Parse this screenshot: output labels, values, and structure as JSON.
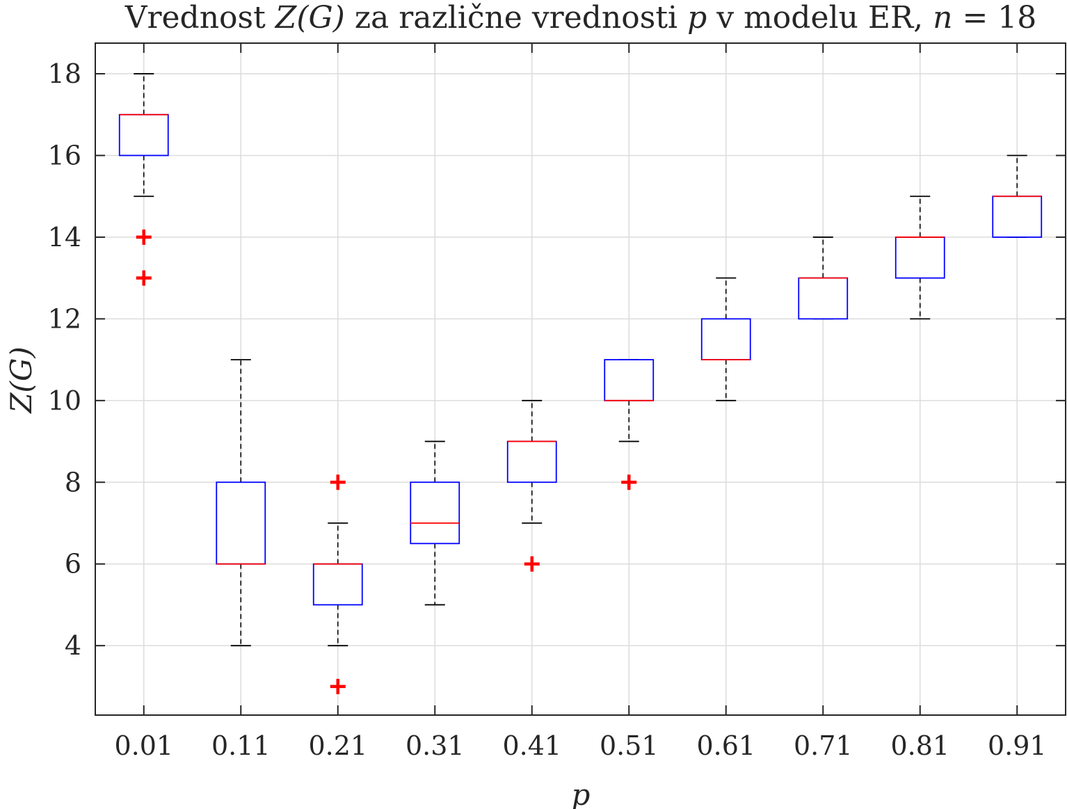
{
  "chart_data": {
    "type": "box",
    "title_parts": {
      "t1": "Vrednost ",
      "t2": "Z(G)",
      "t3": " za različne vrednosti ",
      "t4": "p",
      "t5": " v modelu ER, ",
      "t6": "n",
      "t7": " = 18"
    },
    "xlabel": "p",
    "ylabel": "Z(G)",
    "ylim": [
      2.3,
      18.75
    ],
    "yticks": [
      "4",
      "6",
      "8",
      "10",
      "12",
      "14",
      "16",
      "18"
    ],
    "grid": true,
    "colors": {
      "box": "#0000ff",
      "median": "#ff0000",
      "whisker": "#000000",
      "outlier": "#ff0000",
      "grid": "#dcdcdc",
      "axis": "#262626"
    },
    "categories": [
      "0.01",
      "0.11",
      "0.21",
      "0.31",
      "0.41",
      "0.51",
      "0.61",
      "0.71",
      "0.81",
      "0.91"
    ],
    "boxes": [
      {
        "whisker_low": 15,
        "q1": 16,
        "median": 17,
        "q3": 17,
        "whisker_high": 18,
        "outliers": [
          14,
          13
        ]
      },
      {
        "whisker_low": 4,
        "q1": 6,
        "median": 6,
        "q3": 8,
        "whisker_high": 11,
        "outliers": []
      },
      {
        "whisker_low": 4,
        "q1": 5,
        "median": 6,
        "q3": 6,
        "whisker_high": 7,
        "outliers": [
          8,
          3
        ]
      },
      {
        "whisker_low": 5,
        "q1": 6.5,
        "median": 7,
        "q3": 8,
        "whisker_high": 9,
        "outliers": []
      },
      {
        "whisker_low": 7,
        "q1": 8,
        "median": 9,
        "q3": 9,
        "whisker_high": 10,
        "outliers": [
          6
        ]
      },
      {
        "whisker_low": 9,
        "q1": 10,
        "median": 10,
        "q3": 11,
        "whisker_high": 11,
        "outliers": [
          8
        ]
      },
      {
        "whisker_low": 10,
        "q1": 11,
        "median": 11,
        "q3": 12,
        "whisker_high": 13,
        "outliers": []
      },
      {
        "whisker_low": 12,
        "q1": 12,
        "median": 13,
        "q3": 13,
        "whisker_high": 14,
        "outliers": []
      },
      {
        "whisker_low": 12,
        "q1": 13,
        "median": 14,
        "q3": 14,
        "whisker_high": 15,
        "outliers": []
      },
      {
        "whisker_low": 14,
        "q1": 14,
        "median": 15,
        "q3": 15,
        "whisker_high": 16,
        "outliers": []
      }
    ]
  }
}
